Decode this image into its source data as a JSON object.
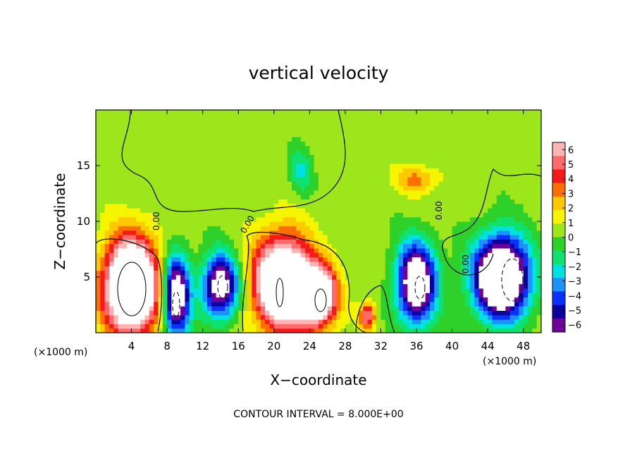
{
  "chart_data": {
    "type": "heatmap",
    "title": "vertical velocity",
    "xlabel": "X−coordinate",
    "ylabel": "Z−coordinate",
    "x_unit_left": "(×1000 m)",
    "x_unit_right": "(×1000 m)",
    "xlim": [
      0,
      50
    ],
    "ylim": [
      0,
      20
    ],
    "x_ticks": [
      {
        "value": 4,
        "label": "4"
      },
      {
        "value": 8,
        "label": "8"
      },
      {
        "value": 12,
        "label": "12"
      },
      {
        "value": 16,
        "label": "16"
      },
      {
        "value": 20,
        "label": "20"
      },
      {
        "value": 24,
        "label": "24"
      },
      {
        "value": 28,
        "label": "28"
      },
      {
        "value": 32,
        "label": "32"
      },
      {
        "value": 36,
        "label": "36"
      },
      {
        "value": 40,
        "label": "40"
      },
      {
        "value": 44,
        "label": "44"
      },
      {
        "value": 48,
        "label": "48"
      }
    ],
    "y_ticks": [
      {
        "value": 5,
        "label": "5"
      },
      {
        "value": 10,
        "label": "10"
      },
      {
        "value": 15,
        "label": "15"
      }
    ],
    "colorbar": {
      "range": [
        -6,
        6
      ],
      "labels": [
        "6",
        "5",
        "4",
        "3",
        "2",
        "1",
        "0",
        "−1",
        "−2",
        "−3",
        "−4",
        "−5",
        "−6"
      ],
      "colors": [
        "#ffb3b3",
        "#ff6b6b",
        "#f41a1a",
        "#ff6e00",
        "#ffc800",
        "#f5f500",
        "#9de61c",
        "#2ed12a",
        "#0fe16e",
        "#00e2e2",
        "#1d92ff",
        "#0a32ff",
        "#0a00a0",
        "#70009c"
      ]
    },
    "contour_labels": [
      "0.00",
      "0.00",
      "0.00",
      "0.00"
    ],
    "contour_interval_text": "CONTOUR INTERVAL =  8.000E+00",
    "features": [
      {
        "kind": "updraft",
        "x": 4.0,
        "z": 4.2,
        "rx": 3.0,
        "rz": 4.2,
        "amp": 12
      },
      {
        "kind": "downdraft",
        "x": 9.0,
        "z": 3.3,
        "rx": 1.5,
        "rz": 3.6,
        "amp": -9
      },
      {
        "kind": "downdraft",
        "x": 14.0,
        "z": 4.2,
        "rx": 2.0,
        "rz": 2.8,
        "amp": -8
      },
      {
        "kind": "updraft",
        "x": 21.0,
        "z": 4.5,
        "rx": 3.2,
        "rz": 4.0,
        "amp": 11
      },
      {
        "kind": "updraft",
        "x": 25.0,
        "z": 3.3,
        "rx": 2.0,
        "rz": 2.6,
        "amp": 9
      },
      {
        "kind": "updraft",
        "x": 30.5,
        "z": 1.5,
        "rx": 0.9,
        "rz": 1.2,
        "amp": 5
      },
      {
        "kind": "downdraft",
        "x": 36.0,
        "z": 4.5,
        "rx": 2.2,
        "rz": 3.5,
        "amp": -9
      },
      {
        "kind": "downdraft",
        "x": 45.5,
        "z": 5.0,
        "rx": 3.0,
        "rz": 3.5,
        "amp": -12
      },
      {
        "kind": "weak_updraft",
        "x": 36.0,
        "z": 13.8,
        "rx": 2.5,
        "rz": 1.2,
        "amp": 2.5
      },
      {
        "kind": "weak_downdraft",
        "x": 23.0,
        "z": 14.5,
        "rx": 1.2,
        "rz": 2.0,
        "amp": -2.2
      }
    ]
  }
}
